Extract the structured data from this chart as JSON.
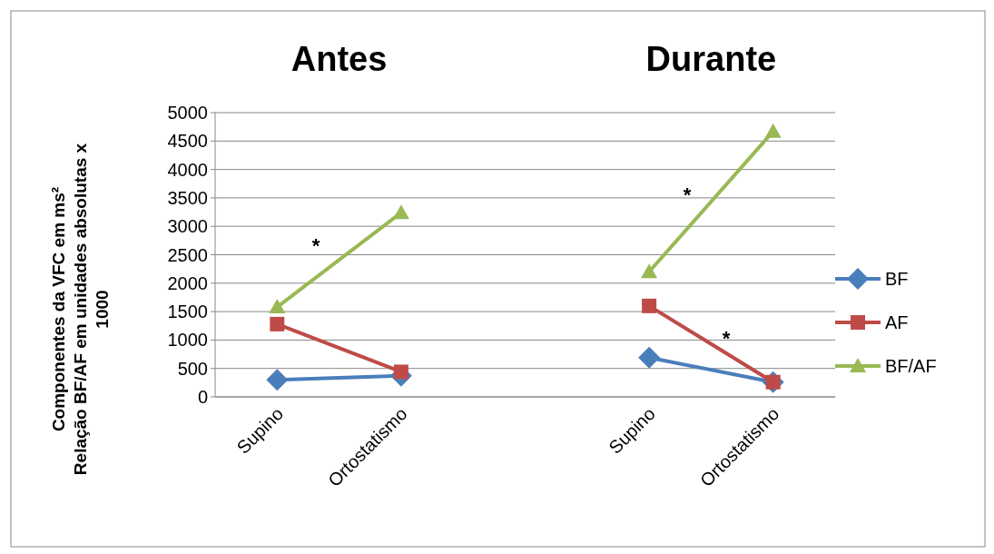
{
  "chart_data": {
    "type": "line",
    "ylabel": "Componentes da VFC em ms²\nRelação BF/AF em unidades absolutas x 1000",
    "annotations": [
      "Antes",
      "Durante",
      "*",
      "*",
      "*"
    ],
    "categories": [
      "Supino",
      "Ortostatismo",
      null,
      "Supino",
      "Ortostatismo"
    ],
    "series": [
      {
        "name": "BF",
        "color": "#4a7ebb",
        "marker": "diamond",
        "values": [
          300,
          370,
          null,
          690,
          260
        ]
      },
      {
        "name": "AF",
        "color": "#be4b48",
        "marker": "square",
        "values": [
          1280,
          440,
          null,
          1600,
          260
        ]
      },
      {
        "name": "BF/AF",
        "color": "#98b954",
        "marker": "triangle",
        "values": [
          1580,
          3240,
          null,
          2200,
          4670
        ]
      }
    ],
    "ylim": [
      0,
      5000
    ],
    "yticks": [
      0,
      500,
      1000,
      1500,
      2000,
      2500,
      3000,
      3500,
      4000,
      4500,
      5000
    ],
    "grid": "y",
    "legend": "right"
  }
}
